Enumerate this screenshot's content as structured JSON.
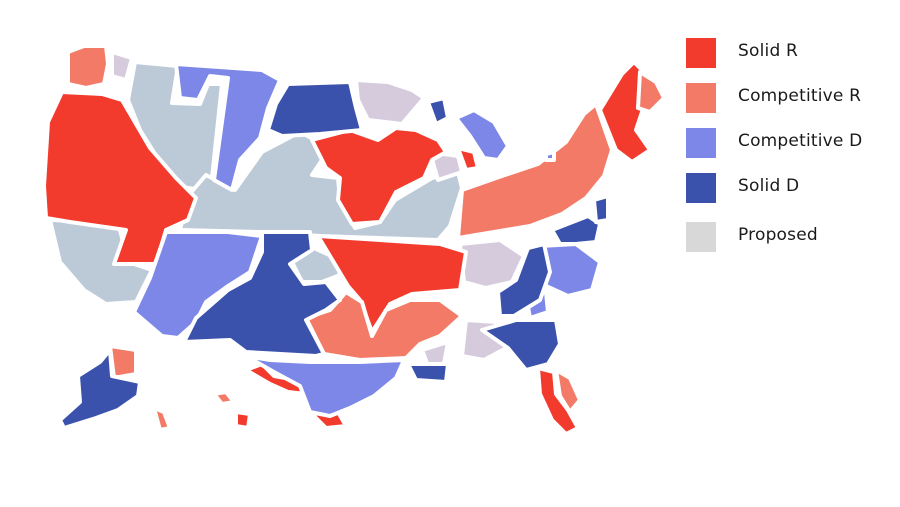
{
  "legend": {
    "items": [
      {
        "key": "solid_r",
        "label": "Solid R",
        "color": "#f23a2d"
      },
      {
        "key": "competitive_r",
        "label": "Competitive R",
        "color": "#f37a67"
      },
      {
        "key": "competitive_d",
        "label": "Competitive D",
        "color": "#7d87e7"
      },
      {
        "key": "solid_d",
        "label": "Solid D",
        "color": "#3b52ac"
      },
      {
        "key": "proposed",
        "label": "Proposed",
        "color": "#d8d8d8"
      }
    ]
  },
  "colors": {
    "solid_r": "#f23a2d",
    "competitive_r": "#f37a67",
    "competitive_d": "#7d87e7",
    "solid_d": "#3b52ac",
    "unassigned": "#bccad8",
    "proposed_region": "#d6cbdd"
  }
}
